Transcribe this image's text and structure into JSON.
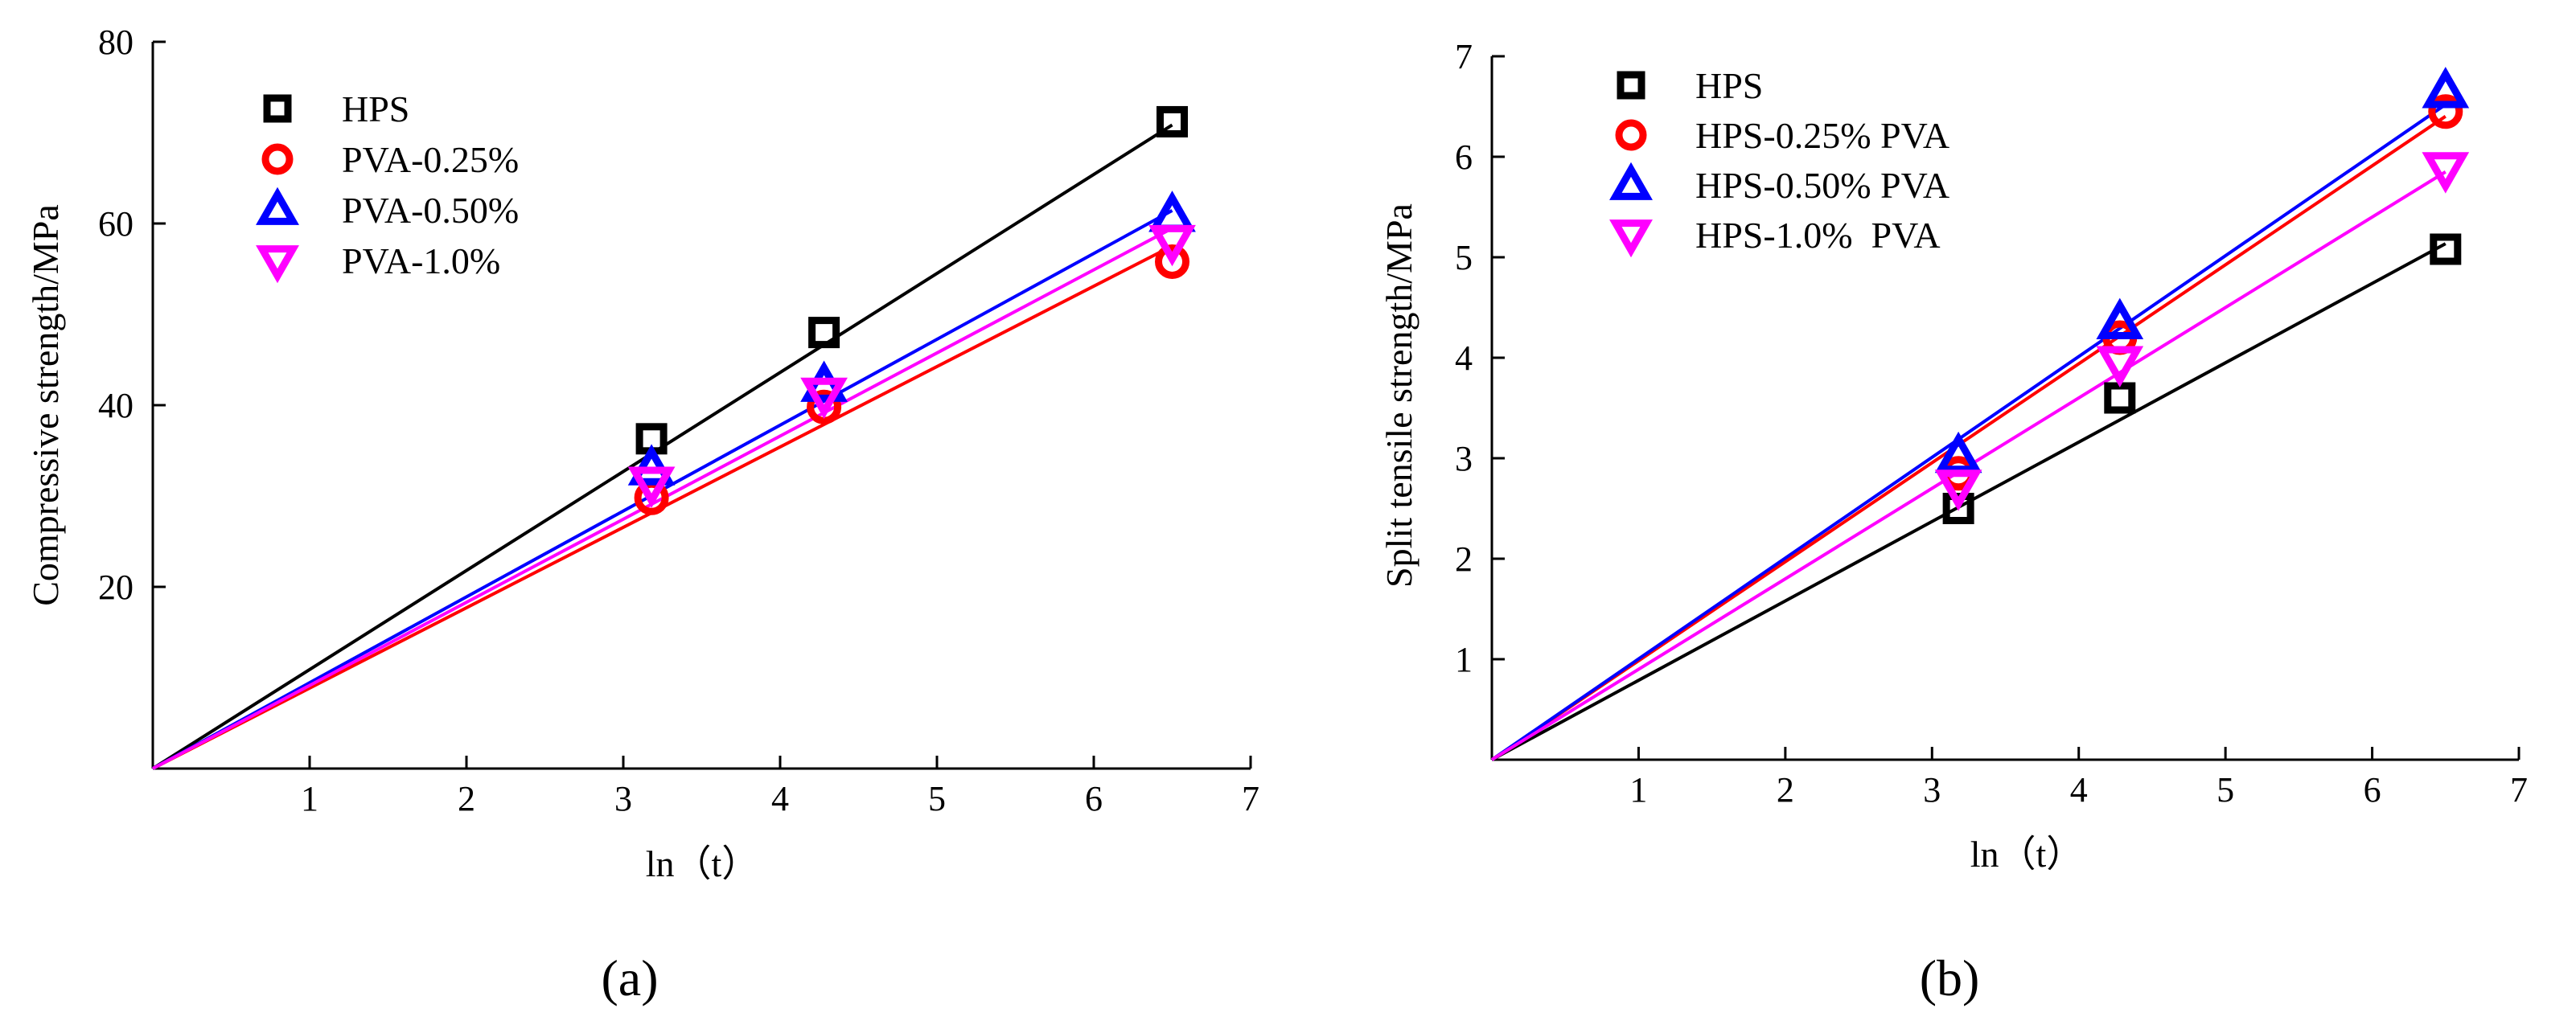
{
  "chart_data": [
    {
      "type": "scatter",
      "panel_label": "(a)",
      "xlabel": "ln（t）",
      "ylabel": "Compressive strength/MPa",
      "xlim": [
        0,
        7
      ],
      "ylim": [
        0,
        80
      ],
      "xticks": [
        1,
        2,
        3,
        4,
        5,
        6,
        7
      ],
      "yticks": [
        20,
        40,
        60,
        80
      ],
      "legend_position": "top-left",
      "series": [
        {
          "name": "HPS",
          "color": "#000000",
          "marker": "square",
          "x": [
            3.18,
            4.28,
            6.5
          ],
          "y": [
            36.3,
            48.0,
            71.2
          ],
          "fit_slope": 10.9
        },
        {
          "name": "PVA-0.25%",
          "color": "#ff0000",
          "marker": "circle",
          "x": [
            3.18,
            4.28,
            6.5
          ],
          "y": [
            29.8,
            39.8,
            55.8
          ],
          "fit_slope": 8.85
        },
        {
          "name": "PVA-0.50%",
          "color": "#0000ff",
          "marker": "triangle-up",
          "x": [
            3.18,
            4.28,
            6.5
          ],
          "y": [
            33.0,
            42.2,
            60.9
          ],
          "fit_slope": 9.45
        },
        {
          "name": "PVA-1.0%",
          "color": "#ff00ff",
          "marker": "triangle-down",
          "x": [
            3.18,
            4.28,
            6.5
          ],
          "y": [
            31.4,
            41.2,
            58.0
          ],
          "fit_slope": 9.15
        }
      ]
    },
    {
      "type": "scatter",
      "panel_label": "(b)",
      "xlabel": "ln（t）",
      "ylabel": "Split tensile strength/MPa",
      "xlim": [
        0,
        7
      ],
      "ylim": [
        0,
        7
      ],
      "xticks": [
        1,
        2,
        3,
        4,
        5,
        6,
        7
      ],
      "yticks": [
        1,
        2,
        3,
        4,
        5,
        6,
        7
      ],
      "legend_position": "top-left",
      "series": [
        {
          "name": "HPS",
          "color": "#000000",
          "marker": "square",
          "x": [
            3.18,
            4.28,
            6.5
          ],
          "y": [
            2.5,
            3.6,
            5.08
          ],
          "fit_slope": 0.79
        },
        {
          "name": "HPS-0.25% PVA",
          "color": "#ff0000",
          "marker": "circle",
          "x": [
            3.18,
            4.28,
            6.5
          ],
          "y": [
            2.85,
            4.2,
            6.45
          ],
          "fit_slope": 0.985
        },
        {
          "name": "HPS-0.50% PVA",
          "color": "#0000ff",
          "marker": "triangle-up",
          "x": [
            3.18,
            4.28,
            6.5
          ],
          "y": [
            3.02,
            4.35,
            6.65
          ],
          "fit_slope": 1.003
        },
        {
          "name": "HPS-1.0%  PVA",
          "color": "#ff00ff",
          "marker": "triangle-down",
          "x": [
            3.18,
            4.28,
            6.5
          ],
          "y": [
            2.72,
            3.95,
            5.88
          ],
          "fit_slope": 0.9
        }
      ]
    }
  ]
}
